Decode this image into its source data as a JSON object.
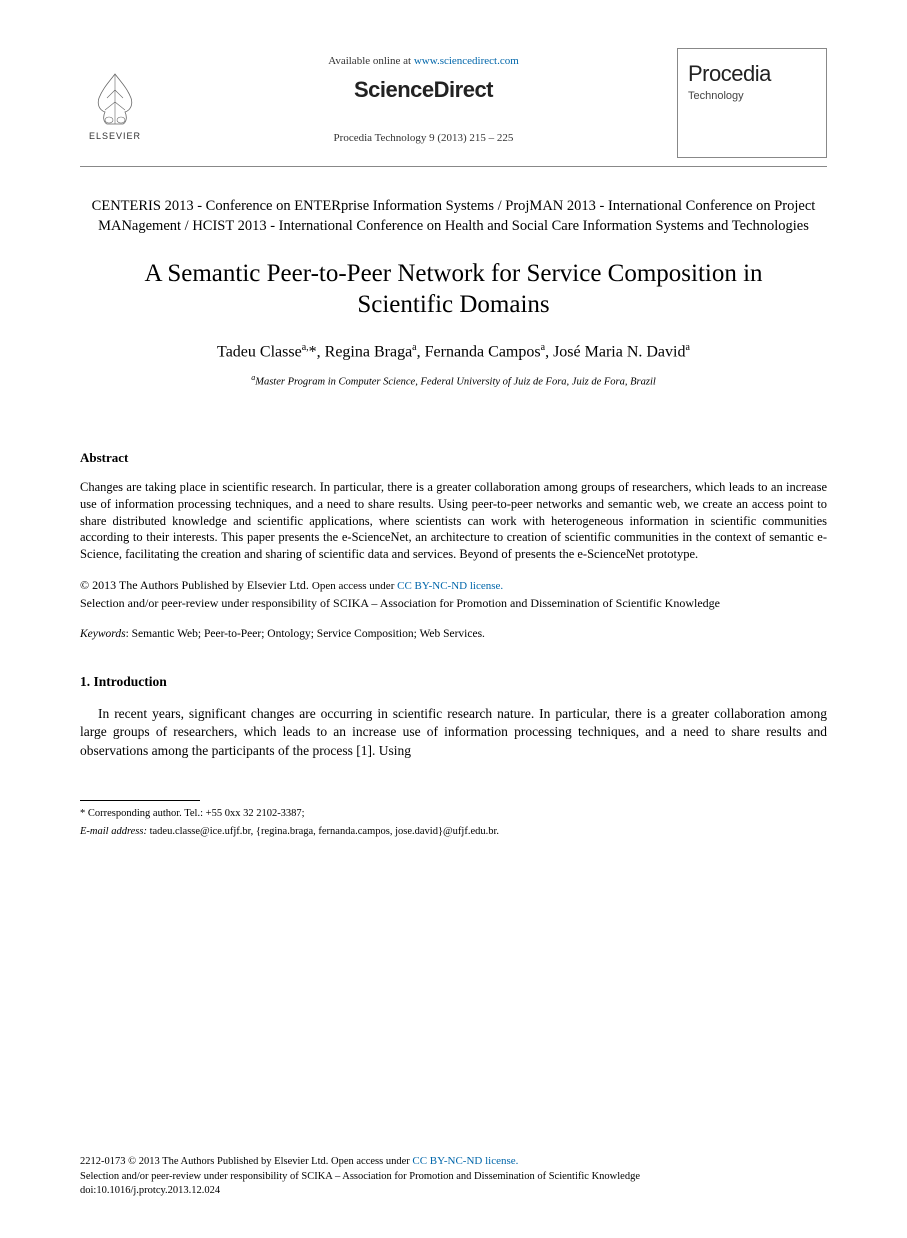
{
  "header": {
    "available_text": "Available online at ",
    "available_url": "www.sciencedirect.com",
    "sciencedirect": "ScienceDirect",
    "elsevier": "ELSEVIER",
    "journal_ref": "Procedia Technology 9 (2013) 215 – 225",
    "procedia_title": "Procedia",
    "procedia_sub": "Technology"
  },
  "conference": "CENTERIS 2013 - Conference on ENTERprise Information Systems / ProjMAN 2013 - International Conference on Project MANagement / HCIST 2013 - International Conference on Health and Social Care Information Systems and Technologies",
  "title": "A Semantic Peer-to-Peer Network for Service Composition in Scientific Domains",
  "authors_html": "Tadeu Classe<sup>a,</sup>*, Regina Braga<sup>a</sup>, Fernanda Campos<sup>a</sup>, José Maria N. David<sup>a</sup>",
  "affiliation_html": "<sup>a</sup>Master Program in Computer Science, Federal University of Juiz de Fora, Juiz de Fora, Brazil",
  "abstract": {
    "heading": "Abstract",
    "text": "Changes are taking place in scientific research. In particular, there is a greater collaboration among groups of researchers, which leads to an increase use of information processing techniques, and a need to share results. Using peer-to-peer networks and semantic web, we create an access point to share distributed knowledge and scientific applications, where scientists can work with heterogeneous information in scientific communities according to their interests. This paper presents the e-ScienceNet, an architecture to creation of scientific communities in the context of semantic e-Science, facilitating the creation and sharing of scientific data and services. Beyond of presents the e-ScienceNet prototype."
  },
  "copyright": {
    "line1_a": "© 2013 The Authors Published by Elsevier Ltd. ",
    "line1_b": "Open access under ",
    "cc_link": "CC BY-NC-ND license.",
    "line2": "Selection and/or peer-review under responsibility of SCIKA – Association for Promotion and Dissemination of Scientific Knowledge"
  },
  "keywords": {
    "label": "Keywords",
    "text": ": Semantic Web; Peer-to-Peer; Ontology; Service Composition; Web Services."
  },
  "intro": {
    "heading": "1. Introduction",
    "para": "In recent years, significant changes are occurring in scientific research nature. In particular, there is a greater collaboration among large groups of researchers, which leads to an increase use of information processing techniques, and a need to share results and observations among the participants of the process [1]. Using"
  },
  "footnote": {
    "corr": "* Corresponding author. Tel.: +55 0xx 32 2102-3387;",
    "email_label": "E-mail address:",
    "email_text": " tadeu.classe@ice.ufjf.br, {regina.braga, fernanda.campos, jose.david}@ufjf.edu.br."
  },
  "bottom": {
    "issn_a": "2212-0173 © 2013 The Authors Published by Elsevier Ltd. ",
    "issn_b": "Open access under ",
    "cc_link": "CC BY-NC-ND license.",
    "sel": "Selection and/or peer-review under responsibility of SCIKA – Association for Promotion and Dissemination of Scientific Knowledge",
    "doi": "doi:10.1016/j.protcy.2013.12.024"
  },
  "colors": {
    "link": "#0066aa",
    "text": "#000000",
    "rule": "#888888"
  }
}
